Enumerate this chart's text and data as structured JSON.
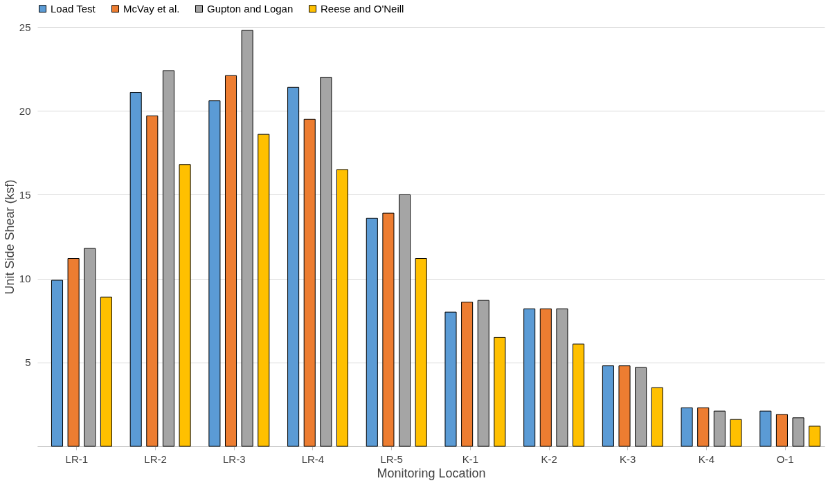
{
  "chart_data": {
    "type": "bar",
    "xlabel": "Monitoring Location",
    "ylabel": "Unit Side Shear (ksf)",
    "categories": [
      "LR-1",
      "LR-2",
      "LR-3",
      "LR-4",
      "LR-5",
      "K-1",
      "K-2",
      "K-3",
      "K-4",
      "O-1"
    ],
    "series": [
      {
        "name": "Load Test",
        "color": "#5b9bd5",
        "values": [
          9.9,
          21.1,
          20.6,
          21.4,
          13.6,
          8.0,
          8.2,
          4.8,
          2.3,
          2.1
        ]
      },
      {
        "name": "McVay et al.",
        "color": "#ed7d31",
        "values": [
          11.2,
          19.7,
          22.1,
          19.5,
          13.9,
          8.6,
          8.2,
          4.8,
          2.3,
          1.9
        ]
      },
      {
        "name": "Gupton and Logan",
        "color": "#a5a5a5",
        "values": [
          11.8,
          22.4,
          24.8,
          22.0,
          15.0,
          8.7,
          8.2,
          4.7,
          2.1,
          1.7
        ]
      },
      {
        "name": "Reese and O'Neill",
        "color": "#ffc000",
        "values": [
          8.9,
          16.8,
          18.6,
          16.5,
          11.2,
          6.5,
          6.1,
          3.5,
          1.6,
          1.2
        ]
      }
    ],
    "ylim": [
      0,
      25
    ],
    "yticks": [
      {
        "value": 0,
        "label": null
      },
      5,
      10,
      15,
      20,
      25
    ],
    "grid": "y",
    "legend": "top"
  }
}
